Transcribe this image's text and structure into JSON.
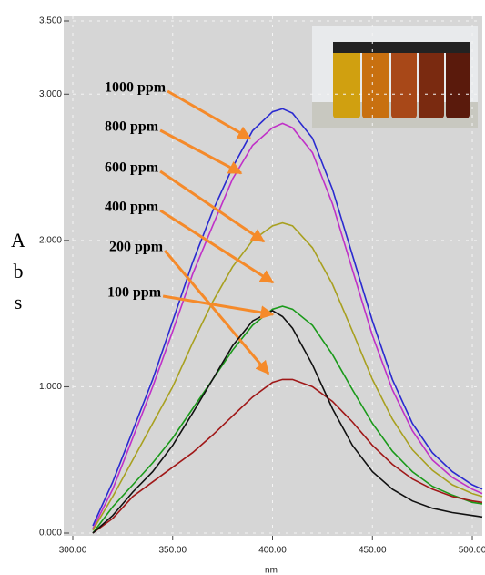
{
  "chart_data": {
    "type": "line",
    "x_label": "nm",
    "y_label": "Abs",
    "x": [
      310,
      320,
      330,
      340,
      350,
      360,
      370,
      380,
      390,
      400,
      405,
      410,
      420,
      430,
      440,
      450,
      460,
      470,
      480,
      490,
      500,
      505
    ],
    "series": [
      {
        "name": "1000 ppm",
        "color": "#2a2ad0",
        "values": [
          0.05,
          0.35,
          0.7,
          1.05,
          1.45,
          1.85,
          2.2,
          2.5,
          2.75,
          2.88,
          2.9,
          2.87,
          2.7,
          2.35,
          1.9,
          1.45,
          1.05,
          0.75,
          0.55,
          0.42,
          0.33,
          0.3
        ]
      },
      {
        "name": "800 ppm",
        "color": "#c030c8",
        "values": [
          0.03,
          0.3,
          0.65,
          1.0,
          1.38,
          1.77,
          2.1,
          2.42,
          2.65,
          2.77,
          2.8,
          2.77,
          2.6,
          2.25,
          1.8,
          1.35,
          0.98,
          0.7,
          0.5,
          0.38,
          0.3,
          0.27
        ]
      },
      {
        "name": "600 ppm",
        "color": "#a8a020",
        "values": [
          0.02,
          0.25,
          0.5,
          0.75,
          1.0,
          1.3,
          1.58,
          1.82,
          2.0,
          2.1,
          2.12,
          2.1,
          1.95,
          1.7,
          1.38,
          1.05,
          0.78,
          0.57,
          0.43,
          0.33,
          0.27,
          0.25
        ]
      },
      {
        "name": "400 ppm",
        "color": "#1a9a1a",
        "values": [
          0.0,
          0.18,
          0.33,
          0.48,
          0.65,
          0.85,
          1.05,
          1.25,
          1.42,
          1.53,
          1.55,
          1.53,
          1.42,
          1.22,
          0.98,
          0.75,
          0.56,
          0.42,
          0.32,
          0.26,
          0.21,
          0.2
        ]
      },
      {
        "name": "200 ppm",
        "color": "#a01818",
        "values": [
          0.0,
          0.1,
          0.25,
          0.35,
          0.45,
          0.55,
          0.67,
          0.8,
          0.93,
          1.03,
          1.05,
          1.05,
          1.0,
          0.9,
          0.76,
          0.6,
          0.47,
          0.37,
          0.3,
          0.25,
          0.22,
          0.21
        ]
      },
      {
        "name": "100 ppm",
        "color": "#111111",
        "values": [
          0.0,
          0.12,
          0.28,
          0.42,
          0.6,
          0.82,
          1.05,
          1.28,
          1.45,
          1.52,
          1.48,
          1.4,
          1.15,
          0.85,
          0.6,
          0.42,
          0.3,
          0.22,
          0.17,
          0.14,
          0.12,
          0.11
        ]
      }
    ],
    "xlim": [
      300,
      505
    ],
    "xticks": [
      {
        "value": 300,
        "label": "300.00"
      },
      {
        "value": 350,
        "label": "350.00"
      },
      {
        "value": 400,
        "label": "400.00"
      },
      {
        "value": 450,
        "label": "450.00"
      },
      {
        "value": 500,
        "label": "500.00"
      }
    ],
    "ylim": [
      0,
      3.5
    ],
    "yticks": [
      {
        "value": 0,
        "label": "0.000"
      },
      {
        "value": 1,
        "label": "1.000"
      },
      {
        "value": 2,
        "label": "2.000"
      },
      {
        "value": 3,
        "label": "3.000"
      },
      {
        "value": 3.5,
        "label": "3.500"
      }
    ],
    "grid": true
  }
}
